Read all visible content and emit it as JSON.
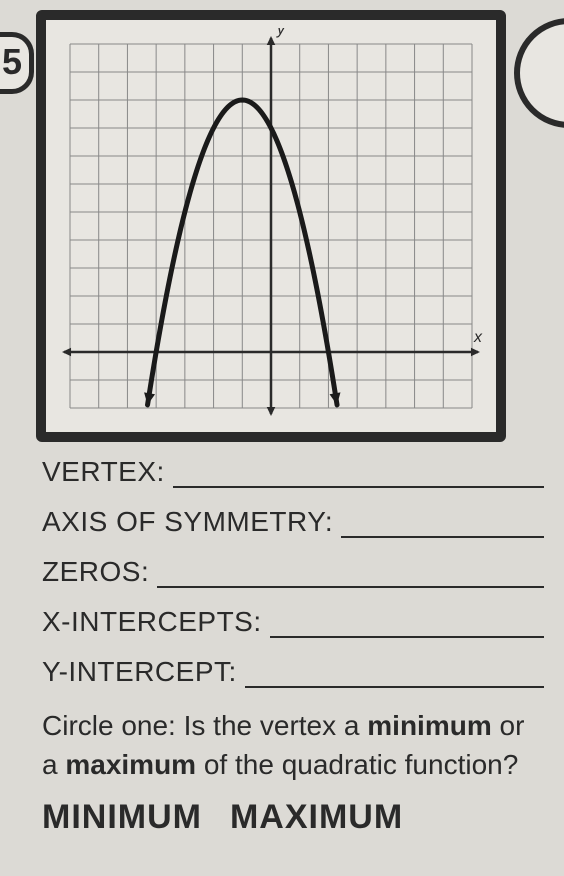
{
  "question_number": "5",
  "chart": {
    "type": "parabola",
    "background_color": "#e8e6e1",
    "grid_color": "#888888",
    "axis_color": "#2a2a2a",
    "curve_color": "#1a1a1a",
    "x_label": "x",
    "y_label": "y",
    "x_range": [
      -7,
      7
    ],
    "y_range": [
      -2,
      11
    ],
    "grid_step": 1,
    "x_axis_y": 0,
    "y_axis_x": 0,
    "parabola": {
      "vertex": [
        -1,
        9
      ],
      "a": -1,
      "zeros": [
        -4,
        2
      ],
      "line_width": 5
    },
    "axis_line_width": 2.5,
    "grid_line_width": 1,
    "arrowheads": true
  },
  "fields": [
    {
      "label": "VERTEX:"
    },
    {
      "label": "AXIS OF SYMMETRY:"
    },
    {
      "label": "ZEROS:"
    },
    {
      "label": "X-INTERCEPTS:"
    },
    {
      "label": "Y-INTERCEPT:"
    }
  ],
  "prompt": {
    "pre": "Circle one: Is the vertex a ",
    "bold1": "minimum",
    "mid": " or a ",
    "bold2": "maximum",
    "post": " of the quadratic function?"
  },
  "options": {
    "opt1": "MINIMUM",
    "opt2": "MAXIMUM"
  }
}
